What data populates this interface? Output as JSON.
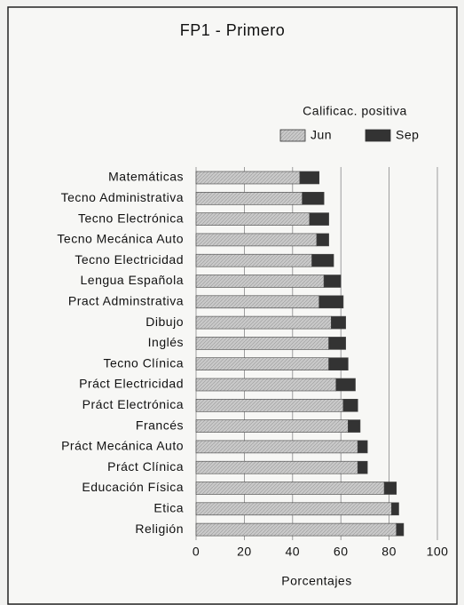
{
  "chart_data": {
    "type": "stacked_bar_horizontal",
    "title": "FP1 - Primero",
    "legend_title": "Calificac. positiva",
    "categories": [
      "Matemáticas",
      "Tecno Administrativa",
      "Tecno Electrónica",
      "Tecno Mecánica Auto",
      "Tecno Electricidad",
      "Lengua Española",
      "Pract Adminstrativa",
      "Dibujo",
      "Inglés",
      "Tecno Clínica",
      "Práct Electricidad",
      "Práct Electrónica",
      "Francés",
      "Práct Mecánica Auto",
      "Práct Clínica",
      "Educación Física",
      "Etica",
      "Religión"
    ],
    "series": [
      {
        "name": "Jun",
        "color": "#c9c9c9",
        "values": [
          43,
          44,
          47,
          50,
          48,
          53,
          51,
          56,
          55,
          55,
          58,
          61,
          63,
          67,
          67,
          78,
          81,
          83
        ]
      },
      {
        "name": "Sep",
        "color": "#333333",
        "values": [
          8,
          9,
          8,
          5,
          9,
          7,
          10,
          6,
          7,
          8,
          8,
          6,
          5,
          4,
          4,
          5,
          3,
          3
        ]
      }
    ],
    "xlim": [
      0,
      100
    ],
    "xticks": [
      0,
      20,
      40,
      60,
      80,
      100
    ],
    "xlabel": "Porcentajes",
    "grid": true
  }
}
